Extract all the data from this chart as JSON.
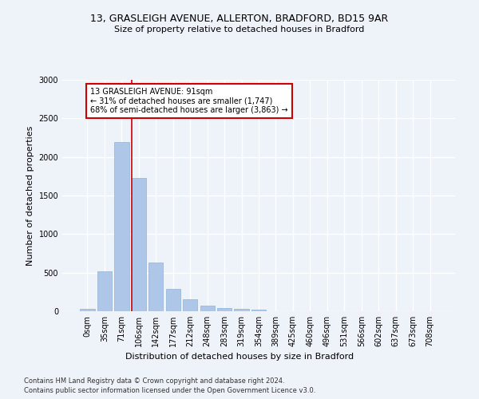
{
  "title1": "13, GRASLEIGH AVENUE, ALLERTON, BRADFORD, BD15 9AR",
  "title2": "Size of property relative to detached houses in Bradford",
  "xlabel": "Distribution of detached houses by size in Bradford",
  "ylabel": "Number of detached properties",
  "footnote1": "Contains HM Land Registry data © Crown copyright and database right 2024.",
  "footnote2": "Contains public sector information licensed under the Open Government Licence v3.0.",
  "bar_labels": [
    "0sqm",
    "35sqm",
    "71sqm",
    "106sqm",
    "142sqm",
    "177sqm",
    "212sqm",
    "248sqm",
    "283sqm",
    "319sqm",
    "354sqm",
    "389sqm",
    "425sqm",
    "460sqm",
    "496sqm",
    "531sqm",
    "566sqm",
    "602sqm",
    "637sqm",
    "673sqm",
    "708sqm"
  ],
  "bar_values": [
    30,
    520,
    2190,
    1730,
    635,
    285,
    155,
    75,
    45,
    30,
    25,
    0,
    0,
    0,
    0,
    0,
    0,
    0,
    0,
    0,
    0
  ],
  "bar_color": "#aec6e8",
  "bar_edge_color": "#8ab4d8",
  "vline_x": 2.6,
  "vline_color": "#cc0000",
  "annotation_text": "13 GRASLEIGH AVENUE: 91sqm\n← 31% of detached houses are smaller (1,747)\n68% of semi-detached houses are larger (3,863) →",
  "annotation_box_color": "#ffffff",
  "annotation_box_edge": "#cc0000",
  "ylim_max": 3000,
  "background_color": "#eef2f9",
  "grid_color": "#ffffff",
  "title1_fontsize": 9,
  "title2_fontsize": 8,
  "ylabel_fontsize": 8,
  "xlabel_fontsize": 8,
  "tick_fontsize": 7,
  "footnote_fontsize": 6
}
